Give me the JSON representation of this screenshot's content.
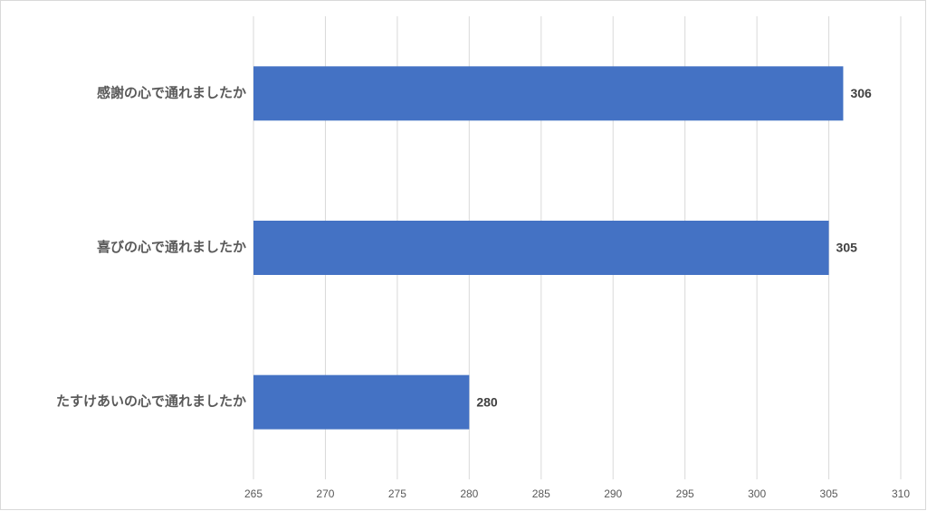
{
  "chart_data": {
    "type": "bar",
    "orientation": "horizontal",
    "categories": [
      "感謝の心で通れましたか",
      "喜びの心で通れましたか",
      "たすけあいの心で通れましたか"
    ],
    "values": [
      306,
      305,
      280
    ],
    "color": "#4472c4",
    "xlim": [
      265,
      310
    ],
    "xticks": [
      265,
      270,
      275,
      280,
      285,
      290,
      295,
      300,
      305,
      310
    ],
    "grid": true
  }
}
